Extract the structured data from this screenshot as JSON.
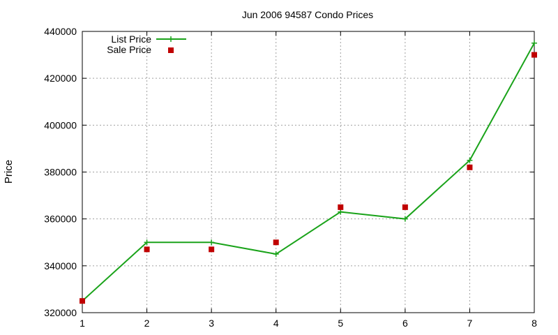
{
  "chart_data": {
    "type": "line",
    "title": "Jun 2006 94587 Condo Prices",
    "xlabel": "",
    "ylabel": "Price",
    "xlim": [
      1,
      8
    ],
    "ylim": [
      320000,
      440000
    ],
    "x_ticks": [
      "1",
      "2",
      "3",
      "4",
      "5",
      "6",
      "7",
      "8"
    ],
    "y_ticks": [
      "320000",
      "340000",
      "360000",
      "380000",
      "400000",
      "420000",
      "440000"
    ],
    "grid": true,
    "legend_position": "top-left",
    "x": [
      1,
      2,
      3,
      4,
      5,
      6,
      7,
      8
    ],
    "series": [
      {
        "name": "List Price",
        "style": "line-with-plus-markers",
        "color": "#1aa31a",
        "values": [
          325000,
          350000,
          350000,
          345000,
          363000,
          360000,
          385000,
          435000
        ]
      },
      {
        "name": "Sale Price",
        "style": "square-markers",
        "color": "#c00000",
        "values": [
          325000,
          347000,
          347000,
          350000,
          365000,
          365000,
          382000,
          430000
        ]
      }
    ]
  }
}
